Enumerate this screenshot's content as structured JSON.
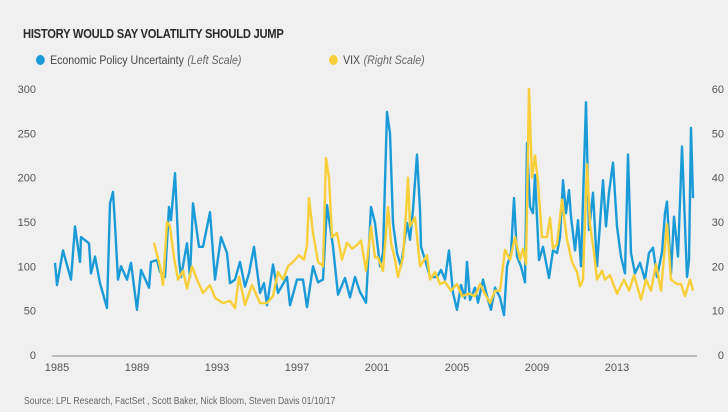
{
  "chart_data": {
    "type": "line",
    "title": "HISTORY WOULD SAY VOLATILITY SHOULD JUMP",
    "legend_placement": "top-left",
    "grid": false,
    "x_ticks": [
      "1985",
      "1989",
      "1993",
      "1997",
      "2001",
      "2005",
      "2009",
      "2013"
    ],
    "xlim": [
      1985,
      2017
    ],
    "left_axis": {
      "ylim": [
        0,
        300
      ],
      "ticks": [
        "0",
        "50",
        "100",
        "150",
        "200",
        "250",
        "300"
      ]
    },
    "right_axis": {
      "ylim": [
        0,
        60
      ],
      "ticks": [
        "0",
        "10",
        "20",
        "30",
        "40",
        "50",
        "60"
      ]
    },
    "series": [
      {
        "name": "Economic Policy Uncertainty",
        "scale_note": "(Left Scale)",
        "axis": "left",
        "color": "#1a9bd7",
        "x": [
          1985.0,
          1985.1,
          1985.4,
          1985.8,
          1986.0,
          1986.25,
          1986.3,
          1986.7,
          1986.8,
          1987.0,
          1987.25,
          1987.6,
          1987.75,
          1987.9,
          1988.0,
          1988.15,
          1988.3,
          1988.6,
          1988.8,
          1989.1,
          1989.3,
          1989.7,
          1989.8,
          1990.1,
          1990.25,
          1990.5,
          1990.7,
          1990.8,
          1991.0,
          1991.2,
          1991.3,
          1991.6,
          1991.75,
          1991.9,
          1992.2,
          1992.4,
          1992.75,
          1993.0,
          1993.3,
          1993.6,
          1993.75,
          1994.0,
          1994.25,
          1994.5,
          1994.7,
          1994.95,
          1995.25,
          1995.45,
          1995.6,
          1995.9,
          1996.15,
          1996.6,
          1996.75,
          1997.1,
          1997.4,
          1997.6,
          1997.9,
          1998.15,
          1998.4,
          1998.6,
          1998.9,
          1999.15,
          1999.5,
          1999.75,
          2000.0,
          2000.25,
          2000.55,
          2000.8,
          2001.0,
          2001.25,
          2001.4,
          2001.6,
          2001.75,
          2001.9,
          2002.1,
          2002.3,
          2002.6,
          2002.75,
          2002.9,
          2003.1,
          2003.25,
          2003.3,
          2003.6,
          2003.75,
          2004.1,
          2004.3,
          2004.5,
          2004.7,
          2004.9,
          2005.1,
          2005.3,
          2005.5,
          2005.6,
          2005.75,
          2006.0,
          2006.15,
          2006.4,
          2006.65,
          2006.8,
          2007.0,
          2007.25,
          2007.45,
          2007.6,
          2007.8,
          2007.95,
          2008.1,
          2008.3,
          2008.5,
          2008.6,
          2008.75,
          2008.9,
          2009.0,
          2009.2,
          2009.4,
          2009.7,
          2009.9,
          2010.1,
          2010.25,
          2010.4,
          2010.55,
          2010.7,
          2010.8,
          2011.0,
          2011.15,
          2011.3,
          2011.55,
          2011.7,
          2011.9,
          2012.1,
          2012.4,
          2012.55,
          2012.7,
          2012.9,
          2013.1,
          2013.3,
          2013.5,
          2013.65,
          2013.8,
          2014.0,
          2014.25,
          2014.5,
          2014.7,
          2014.9,
          2015.1,
          2015.35,
          2015.5,
          2015.6,
          2015.8,
          2015.95,
          2016.15,
          2016.35,
          2016.6,
          2016.7,
          2016.8,
          2016.9
        ],
        "values": [
          104,
          79,
          118,
          85,
          145,
          105,
          133,
          126,
          92,
          111,
          81,
          53,
          171,
          184,
          147,
          85,
          100,
          85,
          104,
          51,
          96,
          76,
          105,
          107,
          94,
          88,
          167,
          152,
          205,
          107,
          88,
          126,
          88,
          171,
          122,
          122,
          161,
          85,
          133,
          115,
          81,
          85,
          105,
          77,
          92,
          122,
          70,
          81,
          56,
          102,
          70,
          88,
          56,
          85,
          85,
          54,
          100,
          82,
          85,
          169,
          122,
          68,
          87,
          65,
          88,
          71,
          59,
          167,
          149,
          100,
          115,
          274,
          250,
          149,
          115,
          100,
          149,
          130,
          164,
          226,
          164,
          122,
          100,
          88,
          88,
          96,
          85,
          118,
          70,
          51,
          79,
          64,
          105,
          62,
          76,
          59,
          85,
          62,
          51,
          76,
          65,
          45,
          100,
          115,
          177,
          111,
          100,
          82,
          239,
          167,
          160,
          203,
          107,
          122,
          87,
          118,
          115,
          133,
          197,
          160,
          186,
          156,
          118,
          152,
          100,
          285,
          141,
          183,
          100,
          197,
          145,
          183,
          217,
          145,
          111,
          92,
          226,
          115,
          92,
          104,
          85,
          115,
          121,
          88,
          116,
          160,
          173,
          92,
          156,
          111,
          235,
          88,
          107,
          256,
          177
        ]
      },
      {
        "name": "VIX",
        "scale_note": "(Right Scale)",
        "axis": "right",
        "color": "#f8cf38",
        "x": [
          1989.95,
          1990.25,
          1990.4,
          1990.6,
          1990.75,
          1990.95,
          1991.15,
          1991.4,
          1991.6,
          1991.85,
          1992.1,
          1992.4,
          1992.75,
          1993.0,
          1993.4,
          1993.75,
          1994.0,
          1994.2,
          1994.5,
          1994.85,
          1995.25,
          1995.6,
          1995.9,
          1996.15,
          1996.4,
          1996.65,
          1996.9,
          1997.2,
          1997.45,
          1997.6,
          1997.7,
          1997.9,
          1998.15,
          1998.4,
          1998.55,
          1998.7,
          1998.85,
          1999.1,
          1999.35,
          1999.6,
          1999.85,
          2000.1,
          2000.3,
          2000.55,
          2000.8,
          2001.0,
          2001.15,
          2001.4,
          2001.65,
          2001.8,
          2002.0,
          2002.15,
          2002.4,
          2002.55,
          2002.65,
          2002.75,
          2003.0,
          2003.25,
          2003.6,
          2003.75,
          2004.0,
          2004.25,
          2004.5,
          2004.8,
          2005.1,
          2005.35,
          2005.7,
          2006.0,
          2006.25,
          2006.5,
          2006.75,
          2007.0,
          2007.25,
          2007.5,
          2007.75,
          2008.0,
          2008.25,
          2008.4,
          2008.55,
          2008.7,
          2008.85,
          2009.0,
          2009.15,
          2009.35,
          2009.6,
          2009.75,
          2009.9,
          2010.1,
          2010.35,
          2010.6,
          2010.85,
          2011.1,
          2011.25,
          2011.4,
          2011.6,
          2011.75,
          2011.95,
          2012.1,
          2012.35,
          2012.5,
          2012.75,
          2013.1,
          2013.45,
          2013.7,
          2013.95,
          2014.3,
          2014.55,
          2014.8,
          2015.05,
          2015.3,
          2015.6,
          2015.8,
          2016.1,
          2016.3,
          2016.5,
          2016.75,
          2016.9
        ],
        "values": [
          25.3,
          20,
          15.8,
          30,
          29,
          22,
          17,
          19,
          15,
          20,
          17,
          14,
          15.8,
          12.9,
          11.7,
          12.2,
          10.6,
          17.6,
          11.3,
          15.8,
          11.7,
          11.7,
          13.3,
          18.7,
          17,
          20,
          21,
          22.5,
          21.5,
          24.8,
          35.4,
          27.5,
          21,
          20,
          44.4,
          40,
          26.6,
          27.5,
          21.5,
          25.3,
          24,
          24.8,
          25.8,
          19,
          29,
          22,
          22,
          19,
          33.4,
          25.3,
          21.5,
          17.6,
          22,
          32,
          40,
          29,
          31,
          20,
          22.5,
          17,
          18.7,
          16,
          16.5,
          14.5,
          16,
          13.3,
          13.8,
          13.3,
          16,
          13.8,
          11.7,
          14.5,
          14.5,
          23.7,
          21.5,
          26.6,
          21.5,
          24,
          20.5,
          60,
          40,
          45,
          39,
          26.6,
          26.6,
          31,
          24,
          25,
          35,
          26,
          21,
          18.7,
          15.5,
          17,
          43,
          29.5,
          23,
          17,
          19,
          17,
          18,
          13.8,
          17,
          14.5,
          18,
          12.5,
          17,
          14.5,
          20.5,
          14.5,
          29.5,
          17,
          16,
          16,
          13.3,
          17,
          14.5
        ]
      }
    ],
    "source": "Source: LPL Research, FactSet , Scott Baker, Nick Bloom, Steven Davis   01/10/17"
  }
}
